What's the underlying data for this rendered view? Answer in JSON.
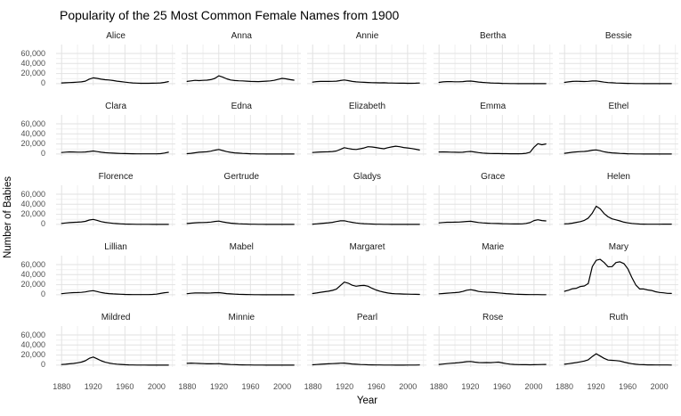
{
  "title": "Popularity of the 25 Most Common Female Names from 1900",
  "xlabel": "Year",
  "ylabel": "Number of Babies",
  "colors": {
    "line": "#000000",
    "grid_major": "#e2e2e2",
    "grid_minor": "#efefef",
    "axis_text": "#4d4d4d",
    "strip_text": "#1a1a1a",
    "background": "#ffffff"
  },
  "axes": {
    "x_range": [
      1873,
      2024
    ],
    "y_range": [
      -3700,
      77700
    ],
    "x_major": [
      1880,
      1920,
      1960,
      2000
    ],
    "x_minor": [
      1900,
      1940,
      1980,
      2020
    ],
    "y_major": [
      0,
      20000,
      40000,
      60000
    ],
    "y_minor": [
      10000,
      30000,
      50000
    ],
    "x_tick_labels": [
      "1880",
      "1920",
      "1960",
      "2000"
    ],
    "y_tick_labels": [
      {
        "label": "60,000",
        "value": 60000
      },
      {
        "label": "40,000",
        "value": 40000
      },
      {
        "label": "20,000",
        "value": 20000
      },
      {
        "label": "0",
        "value": 0
      }
    ]
  },
  "chart_data": {
    "type": "line",
    "title": "Popularity of the 25 Most Common Female Names from 1900",
    "xlabel": "Year",
    "ylabel": "Number of Babies",
    "legend": "none",
    "grid": "on",
    "layout": "facet-grid-5x5",
    "x": [
      1880,
      1885,
      1890,
      1895,
      1900,
      1905,
      1910,
      1915,
      1920,
      1925,
      1930,
      1935,
      1940,
      1945,
      1950,
      1955,
      1960,
      1965,
      1970,
      1975,
      1980,
      1985,
      1990,
      1995,
      2000,
      2005,
      2010,
      2015
    ],
    "facets": [
      {
        "name": "Alice",
        "values": [
          1500,
          1800,
          2200,
          2500,
          3000,
          3500,
          5000,
          9000,
          11500,
          10500,
          8800,
          7800,
          7200,
          6200,
          5000,
          4000,
          3000,
          2200,
          1500,
          1000,
          800,
          750,
          750,
          850,
          1000,
          1500,
          2500,
          4000
        ]
      },
      {
        "name": "Anna",
        "values": [
          4500,
          5500,
          6500,
          6000,
          6500,
          7000,
          8000,
          10500,
          15500,
          13000,
          9500,
          7200,
          6200,
          5600,
          5500,
          5000,
          4500,
          4200,
          4000,
          4500,
          5000,
          5500,
          6500,
          8500,
          10500,
          9500,
          8000,
          7000
        ]
      },
      {
        "name": "Annie",
        "values": [
          3000,
          4000,
          4500,
          4500,
          4500,
          4600,
          5000,
          6200,
          7200,
          6000,
          4500,
          3500,
          3000,
          2600,
          2400,
          2000,
          1800,
          1600,
          1800,
          1500,
          1200,
          1000,
          900,
          850,
          800,
          750,
          900,
          1200
        ]
      },
      {
        "name": "Bertha",
        "values": [
          2500,
          3500,
          4000,
          4000,
          3800,
          3700,
          4100,
          4900,
          5200,
          4200,
          3200,
          2500,
          2000,
          1500,
          1150,
          850,
          600,
          400,
          250,
          150,
          100,
          75,
          55,
          40,
          30,
          25,
          18,
          12
        ]
      },
      {
        "name": "Bessie",
        "values": [
          2500,
          3600,
          4500,
          4800,
          4500,
          4300,
          4600,
          5300,
          5500,
          4300,
          3000,
          2200,
          1700,
          1300,
          1000,
          700,
          480,
          300,
          190,
          120,
          80,
          55,
          40,
          30,
          22,
          16,
          12,
          10
        ]
      },
      {
        "name": "Clara",
        "values": [
          3000,
          3800,
          4200,
          4000,
          3800,
          3700,
          4000,
          5000,
          6000,
          4800,
          3500,
          2700,
          2200,
          1800,
          1500,
          1150,
          900,
          700,
          520,
          420,
          360,
          320,
          310,
          340,
          420,
          800,
          1900,
          3600
        ]
      },
      {
        "name": "Edna",
        "values": [
          800,
          1500,
          2500,
          3500,
          4000,
          4500,
          5600,
          7600,
          9000,
          7000,
          4800,
          3300,
          2300,
          1700,
          1250,
          900,
          600,
          380,
          240,
          150,
          95,
          65,
          48,
          38,
          28,
          22,
          16,
          12
        ]
      },
      {
        "name": "Elizabeth",
        "values": [
          3000,
          3500,
          4000,
          4200,
          4500,
          5000,
          6000,
          9200,
          12500,
          11000,
          9500,
          9000,
          10500,
          12000,
          14500,
          14000,
          13000,
          11500,
          10500,
          12500,
          14200,
          15500,
          14500,
          13000,
          12000,
          11000,
          9500,
          8000
        ]
      },
      {
        "name": "Emma",
        "values": [
          4000,
          4200,
          4000,
          3800,
          3500,
          3300,
          3500,
          4600,
          5100,
          4000,
          2800,
          2000,
          1500,
          1150,
          950,
          850,
          780,
          700,
          620,
          540,
          520,
          640,
          1500,
          3600,
          13500,
          20500,
          18500,
          20000
        ]
      },
      {
        "name": "Ethel",
        "values": [
          1500,
          2500,
          3500,
          4200,
          4800,
          5200,
          6100,
          7600,
          8200,
          6500,
          4500,
          3200,
          2300,
          1700,
          1250,
          900,
          600,
          400,
          250,
          155,
          100,
          70,
          50,
          38,
          30,
          24,
          18,
          14
        ]
      },
      {
        "name": "Florence",
        "values": [
          2000,
          2800,
          3500,
          4000,
          4500,
          5000,
          6100,
          8600,
          10000,
          8000,
          5500,
          4000,
          3000,
          2200,
          1650,
          1150,
          780,
          500,
          340,
          240,
          175,
          140,
          115,
          95,
          85,
          75,
          65,
          58
        ]
      },
      {
        "name": "Gertrude",
        "values": [
          1800,
          2500,
          3200,
          3600,
          3800,
          4000,
          4600,
          5900,
          6500,
          5000,
          3500,
          2500,
          1800,
          1300,
          950,
          680,
          450,
          295,
          195,
          120,
          80,
          55,
          40,
          30,
          24,
          18,
          14,
          10
        ]
      },
      {
        "name": "Gladys",
        "values": [
          500,
          1000,
          1800,
          2500,
          3200,
          4000,
          5600,
          7100,
          7200,
          5500,
          4000,
          2800,
          2000,
          1400,
          1000,
          700,
          450,
          300,
          195,
          125,
          80,
          58,
          42,
          32,
          25,
          20,
          15,
          12
        ]
      },
      {
        "name": "Grace",
        "values": [
          3000,
          3800,
          4200,
          4300,
          4500,
          4700,
          5100,
          5900,
          6200,
          5000,
          3800,
          3000,
          2500,
          2200,
          2000,
          1800,
          1500,
          1250,
          1050,
          920,
          900,
          1050,
          1900,
          3600,
          7600,
          9200,
          7600,
          7000
        ]
      },
      {
        "name": "Helen",
        "values": [
          1000,
          1500,
          2500,
          4000,
          5500,
          8000,
          12500,
          22500,
          36200,
          31000,
          21500,
          15000,
          11000,
          9000,
          7000,
          4500,
          3000,
          1900,
          1250,
          800,
          560,
          440,
          420,
          420,
          450,
          500,
          550,
          600
        ]
      },
      {
        "name": "Lillian",
        "values": [
          2200,
          3000,
          3800,
          4200,
          4500,
          4800,
          5600,
          7300,
          8100,
          6300,
          4500,
          3200,
          2400,
          1800,
          1350,
          1000,
          720,
          520,
          400,
          320,
          300,
          310,
          420,
          640,
          1250,
          2600,
          4100,
          4800
        ]
      },
      {
        "name": "Mabel",
        "values": [
          2200,
          3000,
          3500,
          3700,
          3600,
          3400,
          3600,
          4100,
          4300,
          3300,
          2400,
          1700,
          1200,
          880,
          660,
          480,
          340,
          235,
          150,
          95,
          65,
          48,
          38,
          30,
          26,
          22,
          24,
          32
        ]
      },
      {
        "name": "Margaret",
        "values": [
          2500,
          3600,
          5000,
          6100,
          7100,
          8600,
          11200,
          18200,
          25200,
          23000,
          19000,
          17000,
          18200,
          18600,
          17000,
          13000,
          9500,
          7100,
          5100,
          3500,
          2500,
          2000,
          1750,
          1500,
          1300,
          1100,
          920,
          800
        ]
      },
      {
        "name": "Marie",
        "values": [
          2000,
          2500,
          3200,
          3800,
          4300,
          5000,
          6600,
          9100,
          10100,
          8600,
          6600,
          5600,
          5100,
          5000,
          4500,
          3800,
          3000,
          2250,
          1800,
          1300,
          950,
          720,
          520,
          420,
          350,
          300,
          250,
          210
        ]
      },
      {
        "name": "Mary",
        "values": [
          7000,
          9000,
          12000,
          13000,
          16500,
          17500,
          22500,
          56000,
          68500,
          70500,
          64000,
          55500,
          56000,
          64000,
          65500,
          62000,
          51500,
          34500,
          19500,
          11500,
          11500,
          9600,
          8500,
          6000,
          4700,
          3900,
          2900,
          2600
        ]
      },
      {
        "name": "Mildred",
        "values": [
          1200,
          1800,
          2600,
          3300,
          4600,
          6100,
          8600,
          13600,
          16200,
          12600,
          8600,
          5900,
          4000,
          2850,
          2000,
          1400,
          920,
          610,
          400,
          250,
          155,
          105,
          80,
          62,
          50,
          42,
          36,
          30
        ]
      },
      {
        "name": "Minnie",
        "values": [
          3500,
          4000,
          3800,
          3400,
          3000,
          2750,
          2650,
          2850,
          3050,
          2400,
          1800,
          1300,
          1000,
          780,
          590,
          450,
          340,
          250,
          180,
          120,
          82,
          58,
          42,
          32,
          25,
          20,
          16,
          14
        ]
      },
      {
        "name": "Pearl",
        "values": [
          700,
          1200,
          1800,
          2300,
          2700,
          3000,
          3350,
          3850,
          4050,
          3250,
          2400,
          1800,
          1320,
          1000,
          800,
          600,
          420,
          300,
          210,
          155,
          120,
          100,
          92,
          90,
          105,
          150,
          250,
          360
        ]
      },
      {
        "name": "Rose",
        "values": [
          1500,
          2200,
          3000,
          3700,
          4300,
          5000,
          5900,
          6900,
          7200,
          6000,
          5200,
          5000,
          5200,
          5000,
          5500,
          6000,
          4500,
          3000,
          2000,
          1400,
          1100,
          920,
          820,
          800,
          900,
          1000,
          1200,
          1500
        ]
      },
      {
        "name": "Ruth",
        "values": [
          1800,
          2800,
          4000,
          5200,
          6500,
          8100,
          10600,
          17200,
          22600,
          18000,
          13500,
          10100,
          9500,
          9100,
          8100,
          6100,
          4200,
          2850,
          1850,
          1150,
          820,
          620,
          500,
          420,
          350,
          310,
          285,
          255
        ]
      }
    ]
  }
}
